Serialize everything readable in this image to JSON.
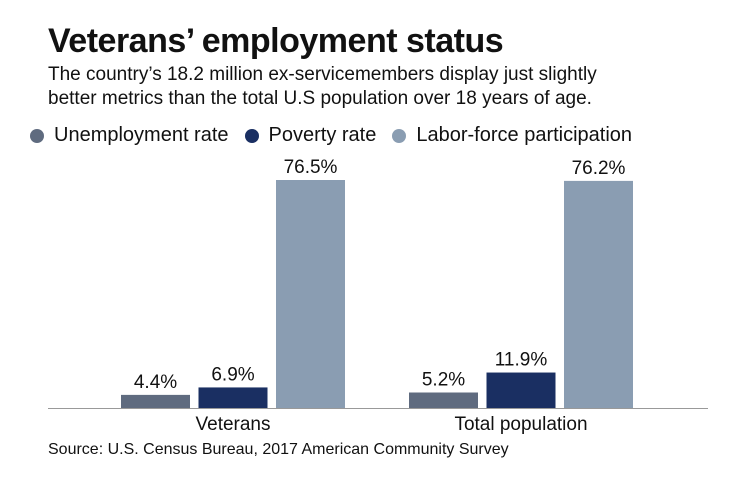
{
  "chart_data": {
    "type": "bar",
    "title": "Veterans’ employment status",
    "subtitle": [
      "The country’s 18.2 million ex-servicemembers display just slightly",
      "better metrics than the total U.S population over 18 years of age."
    ],
    "categories": [
      "Veterans",
      "Total population"
    ],
    "series": [
      {
        "name": "Unemployment rate",
        "color": "#5f6b7f",
        "values": [
          4.4,
          5.2
        ],
        "labels": [
          "4.4%",
          "5.2%"
        ]
      },
      {
        "name": "Poverty rate",
        "color": "#1a2f62",
        "values": [
          6.9,
          11.9
        ],
        "labels": [
          "6.9%",
          "11.9%"
        ]
      },
      {
        "name": "Labor-force participation",
        "color": "#8a9db2",
        "values": [
          76.5,
          76.2
        ],
        "labels": [
          "76.5%",
          "76.2%"
        ]
      }
    ],
    "ylim": [
      0,
      80
    ],
    "legend": "top",
    "source": "Source: U.S. Census Bureau, 2017 American Community Survey"
  }
}
